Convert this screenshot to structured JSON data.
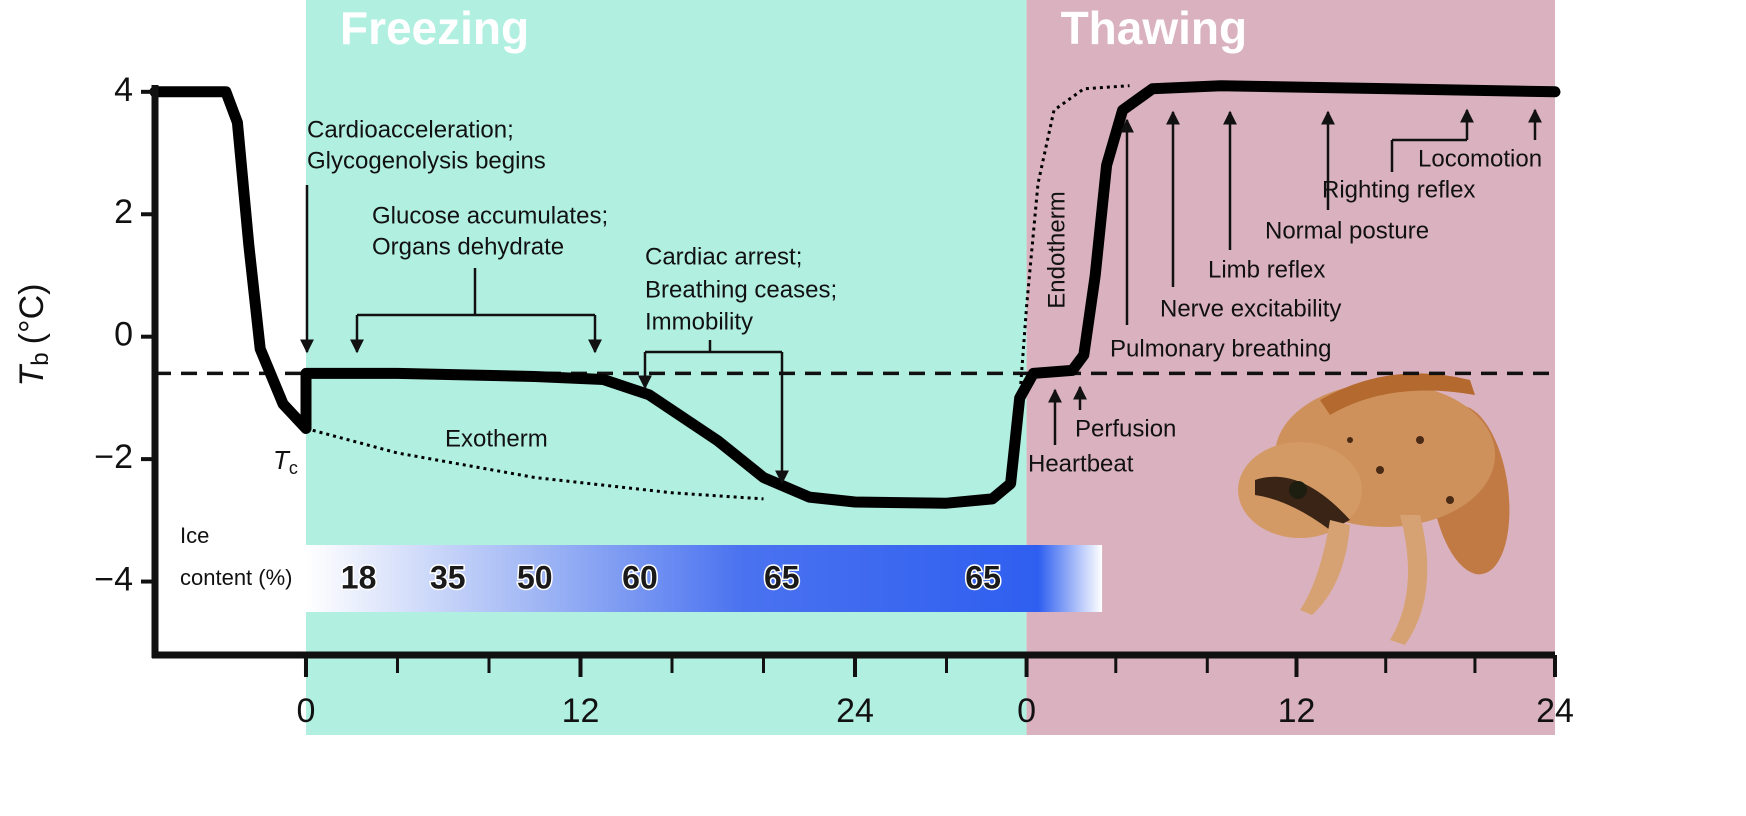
{
  "chart_data": {
    "type": "line",
    "regions": [
      {
        "label": "Freezing",
        "start": 0,
        "end": 31.5,
        "color": "#b1efe1"
      },
      {
        "label": "Thawing",
        "start": 31.5,
        "end": 54.6,
        "color": "#dab2bf"
      }
    ],
    "y_label": {
      "symbol": "T",
      "subscript": "b",
      "unit": "(°C)"
    },
    "xlim": [
      -6.6,
      54.6
    ],
    "ylim": [
      -5.2,
      5.5
    ],
    "xticks": [
      0,
      12,
      24,
      {
        "value": 31.5,
        "label": "0"
      },
      {
        "value": 43.3,
        "label": "12"
      },
      {
        "value": 54.6,
        "label": "24"
      }
    ],
    "xminorticks": [
      4,
      8,
      16,
      20,
      28,
      35.4,
      39.4,
      47.2,
      51.1
    ],
    "yticks": [
      {
        "value": -4,
        "label": "−4"
      },
      {
        "value": -2,
        "label": "−2"
      },
      0,
      2,
      4
    ],
    "reference_line": -0.6,
    "series": [
      {
        "color": "#000000",
        "style": "solid",
        "x": [
          -6.6,
          -3.5,
          -3,
          -2.5,
          -2,
          -1,
          0,
          0,
          4,
          10,
          13,
          15,
          18,
          20,
          22,
          24,
          28,
          30,
          30.8,
          31.2,
          31.8,
          33.5,
          34,
          34.5,
          35,
          35.7,
          37,
          40,
          54.6
        ],
        "values": [
          4,
          4,
          3.5,
          1.5,
          -0.2,
          -1.1,
          -1.5,
          -0.6,
          -0.6,
          -0.65,
          -0.7,
          -0.95,
          -1.7,
          -2.3,
          -2.62,
          -2.7,
          -2.72,
          -2.65,
          -2.4,
          -1,
          -0.6,
          -0.55,
          -0.3,
          1,
          2.8,
          3.7,
          4.05,
          4.1,
          4
        ]
      },
      {
        "color": "#000000",
        "style": "dotted",
        "x": [
          0,
          4,
          10,
          16,
          20,
          null,
          31.2,
          31.5,
          32,
          32.7,
          34,
          36
        ],
        "values": [
          -1.5,
          -1.9,
          -2.3,
          -2.55,
          -2.65,
          null,
          -1,
          0.5,
          2.5,
          3.7,
          4.05,
          4.1
        ]
      }
    ],
    "tc_label": {
      "symbol": "T",
      "subscript": "c"
    },
    "ice_content": {
      "label": [
        "Ice",
        "content (%)"
      ],
      "start": 0,
      "end": 34.8,
      "x": [
        2.3,
        6.2,
        10,
        14.6,
        20.8,
        29.6
      ],
      "values": [
        18,
        35,
        50,
        60,
        65,
        65
      ]
    },
    "annotations": [
      {
        "lines": [
          "Cardioacceleration;",
          "Glycogenolysis begins"
        ]
      },
      {
        "lines": [
          "Glucose accumulates;",
          "Organs dehydrate"
        ]
      },
      {
        "lines": [
          "Cardiac arrest;",
          "Breathing ceases;",
          "Immobility"
        ]
      },
      {
        "lines": [
          "Exotherm"
        ]
      },
      {
        "lines": [
          "Endotherm"
        ]
      },
      {
        "lines": [
          "Heartbeat"
        ]
      },
      {
        "lines": [
          "Perfusion"
        ]
      },
      {
        "lines": [
          "Pulmonary breathing"
        ]
      },
      {
        "lines": [
          "Nerve excitability"
        ]
      },
      {
        "lines": [
          "Limb reflex"
        ]
      },
      {
        "lines": [
          "Normal posture"
        ]
      },
      {
        "lines": [
          "Righting reflex"
        ]
      },
      {
        "lines": [
          "Locomotion"
        ]
      }
    ]
  }
}
